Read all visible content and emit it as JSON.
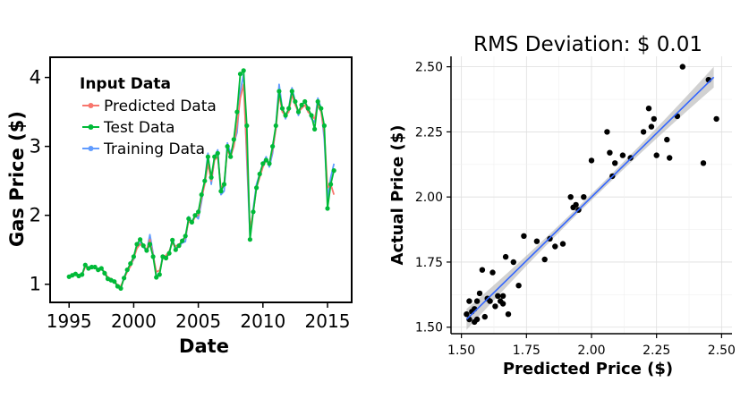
{
  "chart_data": [
    {
      "type": "line",
      "title": "",
      "xlabel": "Date",
      "ylabel": "Gas Price ($)",
      "xlim": [
        1993.6,
        2016.8
      ],
      "ylim": [
        0.75,
        4.28
      ],
      "x_ticks": [
        1995,
        2000,
        2005,
        2010,
        2015
      ],
      "x_tick_labels": [
        "1995",
        "2000",
        "2005",
        "2010",
        "2015"
      ],
      "y_ticks": [
        1,
        2,
        3,
        4
      ],
      "y_tick_labels": [
        "1",
        "2",
        "3",
        "4"
      ],
      "grid": false,
      "legend": {
        "placement": "top-left",
        "title": "Input Data",
        "entries": [
          {
            "name": "Predicted Data",
            "color": "#F8766D"
          },
          {
            "name": "Test Data",
            "color": "#00BA38"
          },
          {
            "name": "Training Data",
            "color": "#619CFF"
          }
        ]
      },
      "series": [
        {
          "name": "Training Data",
          "color": "#619CFF",
          "x": [
            1995.0,
            1995.25,
            1995.5,
            1995.75,
            1996.0,
            1996.25,
            1996.5,
            1996.75,
            1997.0,
            1997.25,
            1997.5,
            1997.75,
            1998.0,
            1998.25,
            1998.5,
            1998.75,
            1999.0,
            1999.25,
            1999.5,
            1999.75,
            2000.0,
            2000.25,
            2000.5,
            2000.75,
            2001.0,
            2001.25,
            2001.5,
            2001.75,
            2002.0,
            2002.25,
            2002.5,
            2002.75,
            2003.0,
            2003.25,
            2003.5,
            2003.75,
            2004.0,
            2004.25,
            2004.5,
            2004.75,
            2005.0,
            2005.25,
            2005.5,
            2005.75,
            2006.0,
            2006.25,
            2006.5,
            2006.75,
            2007.0,
            2007.25,
            2007.5,
            2007.75,
            2008.0,
            2008.25,
            2008.5,
            2008.75,
            2009.0,
            2009.25,
            2009.5,
            2009.75,
            2010.0,
            2010.25,
            2010.5,
            2010.75,
            2011.0,
            2011.25,
            2011.5,
            2011.75,
            2012.0,
            2012.25,
            2012.5,
            2012.75,
            2013.0,
            2013.25,
            2013.5,
            2013.75,
            2014.0,
            2014.25,
            2014.5,
            2014.75,
            2015.0,
            2015.25,
            2015.5
          ],
          "y": [
            1.11,
            1.14,
            1.15,
            1.12,
            1.13,
            1.27,
            1.23,
            1.25,
            1.24,
            1.22,
            1.24,
            1.17,
            1.09,
            1.07,
            1.05,
            0.98,
            0.95,
            1.1,
            1.2,
            1.28,
            1.36,
            1.56,
            1.6,
            1.54,
            1.48,
            1.72,
            1.45,
            1.12,
            1.15,
            1.42,
            1.4,
            1.45,
            1.65,
            1.52,
            1.55,
            1.6,
            1.62,
            1.98,
            1.9,
            2.0,
            1.95,
            2.2,
            2.5,
            2.9,
            2.45,
            2.85,
            2.95,
            2.3,
            2.35,
            3.05,
            2.9,
            3.05,
            3.2,
            3.8,
            4.05,
            2.8,
            1.7,
            2.1,
            2.45,
            2.6,
            2.75,
            2.85,
            2.7,
            2.9,
            3.3,
            3.9,
            3.55,
            3.4,
            3.55,
            3.85,
            3.65,
            3.45,
            3.6,
            3.65,
            3.55,
            3.4,
            3.35,
            3.7,
            3.55,
            3.1,
            2.25,
            2.55,
            2.75
          ]
        },
        {
          "name": "Predicted Data",
          "color": "#F8766D",
          "x": [
            1995.0,
            1995.25,
            1995.5,
            1995.75,
            1996.0,
            1996.25,
            1996.5,
            1996.75,
            1997.0,
            1997.25,
            1997.5,
            1997.75,
            1998.0,
            1998.25,
            1998.5,
            1998.75,
            1999.0,
            1999.25,
            1999.5,
            1999.75,
            2000.0,
            2000.25,
            2000.5,
            2000.75,
            2001.0,
            2001.25,
            2001.5,
            2001.75,
            2002.0,
            2002.25,
            2002.5,
            2002.75,
            2003.0,
            2003.25,
            2003.5,
            2003.75,
            2004.0,
            2004.25,
            2004.5,
            2004.75,
            2005.0,
            2005.25,
            2005.5,
            2005.75,
            2006.0,
            2006.25,
            2006.5,
            2006.75,
            2007.0,
            2007.25,
            2007.5,
            2007.75,
            2008.0,
            2008.25,
            2008.5,
            2008.75,
            2009.0,
            2009.25,
            2009.5,
            2009.75,
            2010.0,
            2010.25,
            2010.5,
            2010.75,
            2011.0,
            2011.25,
            2011.5,
            2011.75,
            2012.0,
            2012.25,
            2012.5,
            2012.75,
            2013.0,
            2013.25,
            2013.5,
            2013.75,
            2014.0,
            2014.25,
            2014.5,
            2014.75,
            2015.0,
            2015.25,
            2015.5
          ],
          "y": [
            1.12,
            1.13,
            1.14,
            1.13,
            1.14,
            1.25,
            1.24,
            1.24,
            1.23,
            1.22,
            1.22,
            1.18,
            1.1,
            1.08,
            1.04,
            0.99,
            0.97,
            1.08,
            1.18,
            1.26,
            1.38,
            1.52,
            1.58,
            1.55,
            1.5,
            1.65,
            1.42,
            1.18,
            1.2,
            1.38,
            1.42,
            1.48,
            1.6,
            1.55,
            1.58,
            1.62,
            1.68,
            1.92,
            1.88,
            1.98,
            2.0,
            2.25,
            2.45,
            2.75,
            2.5,
            2.8,
            2.85,
            2.4,
            2.45,
            2.95,
            2.85,
            3.0,
            3.3,
            3.7,
            3.9,
            2.9,
            1.8,
            2.05,
            2.4,
            2.55,
            2.7,
            2.8,
            2.75,
            2.95,
            3.25,
            3.75,
            3.5,
            3.45,
            3.5,
            3.75,
            3.6,
            3.5,
            3.55,
            3.6,
            3.5,
            3.45,
            3.4,
            3.6,
            3.5,
            3.2,
            2.4,
            2.45,
            2.3
          ]
        },
        {
          "name": "Test Data",
          "color": "#00BA38",
          "x": [
            1995.0,
            1995.25,
            1995.5,
            1995.75,
            1996.0,
            1996.25,
            1996.5,
            1996.75,
            1997.0,
            1997.25,
            1997.5,
            1997.75,
            1998.0,
            1998.25,
            1998.5,
            1998.75,
            1999.0,
            1999.25,
            1999.5,
            1999.75,
            2000.0,
            2000.25,
            2000.5,
            2000.75,
            2001.0,
            2001.25,
            2001.5,
            2001.75,
            2002.0,
            2002.25,
            2002.5,
            2002.75,
            2003.0,
            2003.25,
            2003.5,
            2003.75,
            2004.0,
            2004.25,
            2004.5,
            2004.75,
            2005.0,
            2005.25,
            2005.5,
            2005.75,
            2006.0,
            2006.25,
            2006.5,
            2006.75,
            2007.0,
            2007.25,
            2007.5,
            2007.75,
            2008.0,
            2008.25,
            2008.5,
            2008.75,
            2009.0,
            2009.25,
            2009.5,
            2009.75,
            2010.0,
            2010.25,
            2010.5,
            2010.75,
            2011.0,
            2011.25,
            2011.5,
            2011.75,
            2012.0,
            2012.25,
            2012.5,
            2012.75,
            2013.0,
            2013.25,
            2013.5,
            2013.75,
            2014.0,
            2014.25,
            2014.5,
            2014.75,
            2015.0,
            2015.25,
            2015.5
          ],
          "y": [
            1.11,
            1.13,
            1.15,
            1.12,
            1.14,
            1.28,
            1.23,
            1.25,
            1.25,
            1.21,
            1.23,
            1.16,
            1.08,
            1.06,
            1.04,
            0.97,
            0.94,
            1.09,
            1.21,
            1.3,
            1.4,
            1.58,
            1.65,
            1.56,
            1.49,
            1.58,
            1.4,
            1.1,
            1.14,
            1.4,
            1.38,
            1.45,
            1.64,
            1.5,
            1.56,
            1.63,
            1.7,
            1.95,
            1.9,
            2.0,
            2.05,
            2.3,
            2.5,
            2.85,
            2.55,
            2.85,
            2.9,
            2.35,
            2.45,
            3.0,
            2.85,
            3.1,
            3.5,
            4.05,
            4.1,
            3.3,
            1.65,
            2.05,
            2.4,
            2.6,
            2.75,
            2.8,
            2.75,
            3.0,
            3.3,
            3.8,
            3.55,
            3.45,
            3.55,
            3.8,
            3.65,
            3.5,
            3.6,
            3.65,
            3.55,
            3.45,
            3.25,
            3.65,
            3.55,
            3.3,
            2.1,
            2.45,
            2.65
          ]
        }
      ]
    },
    {
      "type": "scatter",
      "title": "RMS Deviation: $ 0.01",
      "xlabel": "Predicted Price ($)",
      "ylabel": "Actual Price ($)",
      "xlim": [
        1.46,
        2.54
      ],
      "ylim": [
        1.475,
        2.54
      ],
      "x_ticks": [
        1.5,
        1.75,
        2.0,
        2.25,
        2.5
      ],
      "x_tick_labels": [
        "1.50",
        "1.75",
        "2.00",
        "2.25",
        "2.50"
      ],
      "y_ticks": [
        1.5,
        1.75,
        2.0,
        2.25,
        2.5
      ],
      "y_tick_labels": [
        "1.50",
        "1.75",
        "2.00",
        "2.25",
        "2.50"
      ],
      "grid": true,
      "fit_line": {
        "x": [
          1.52,
          2.47
        ],
        "y": [
          1.53,
          2.46
        ],
        "color": "#3366FF",
        "band_color": "#BDBDBD"
      },
      "points": {
        "color": "#000000",
        "x": [
          1.52,
          1.53,
          1.53,
          1.54,
          1.55,
          1.55,
          1.56,
          1.56,
          1.57,
          1.58,
          1.59,
          1.6,
          1.61,
          1.62,
          1.63,
          1.64,
          1.65,
          1.66,
          1.66,
          1.67,
          1.68,
          1.7,
          1.72,
          1.74,
          1.79,
          1.82,
          1.84,
          1.86,
          1.89,
          1.92,
          1.93,
          1.94,
          1.95,
          1.97,
          2.0,
          2.06,
          2.07,
          2.08,
          2.09,
          2.12,
          2.15,
          2.2,
          2.22,
          2.23,
          2.24,
          2.25,
          2.29,
          2.3,
          2.33,
          2.35,
          2.43,
          2.45,
          2.48
        ],
        "y": [
          1.55,
          1.53,
          1.6,
          1.56,
          1.57,
          1.52,
          1.6,
          1.53,
          1.63,
          1.72,
          1.54,
          1.61,
          1.6,
          1.71,
          1.58,
          1.62,
          1.6,
          1.62,
          1.59,
          1.77,
          1.55,
          1.75,
          1.66,
          1.85,
          1.83,
          1.76,
          1.84,
          1.81,
          1.82,
          2.0,
          1.96,
          1.97,
          1.95,
          2.0,
          2.14,
          2.25,
          2.17,
          2.08,
          2.13,
          2.16,
          2.15,
          2.25,
          2.34,
          2.27,
          2.3,
          2.16,
          2.22,
          2.15,
          2.31,
          2.5,
          2.13,
          2.45,
          2.3
        ]
      }
    }
  ]
}
